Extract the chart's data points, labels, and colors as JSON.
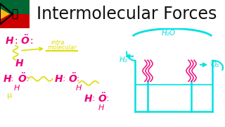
{
  "title": "Intermolecular Forces",
  "title_fontsize": 17,
  "title_color": "#111111",
  "title_bg": "#ffffff",
  "main_bg": "#000000",
  "cyan_color": "#00e0e0",
  "yellow_color": "#dddd00",
  "magenta_color": "#ee0077",
  "avatar_bg": "#cccccc",
  "flag_green": "#007A4D",
  "flag_white": "#FFFFFF",
  "flag_red": "#DE3831",
  "flag_blue": "#002395",
  "flag_gold": "#FFB612",
  "flag_black": "#000000"
}
